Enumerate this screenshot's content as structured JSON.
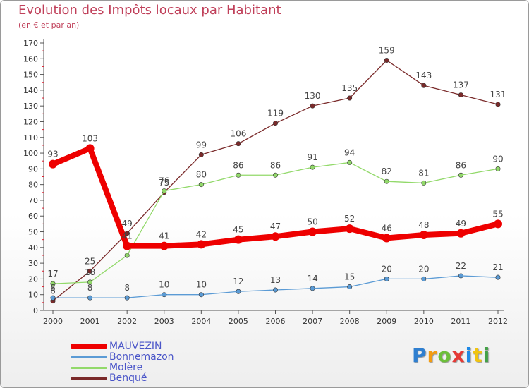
{
  "header": {
    "title": "Evolution des Impôts locaux par Habitant",
    "subtitle": "(en € et par an)"
  },
  "brand": {
    "text": "Proxiti",
    "letter_colors": [
      "#2f7fd0",
      "#f39c12",
      "#6cbf3a",
      "#e53935",
      "#1e88e5",
      "#f1c40f",
      "#43a047"
    ]
  },
  "chart_data": {
    "type": "line",
    "title": "Evolution des Impôts locaux par Habitant",
    "subtitle": "(en € et par an)",
    "xlabel": "",
    "ylabel": "",
    "x": [
      "2000",
      "2001",
      "2002",
      "2003",
      "2004",
      "2005",
      "2006",
      "2007",
      "2008",
      "2009",
      "2010",
      "2011",
      "2012"
    ],
    "ylim": [
      0,
      170
    ],
    "yticks": [
      0,
      10,
      20,
      30,
      40,
      50,
      60,
      70,
      80,
      90,
      100,
      110,
      120,
      130,
      140,
      150,
      160,
      170
    ],
    "grid": false,
    "legend_position": "bottom-left",
    "series": [
      {
        "name": "Benqué",
        "color": "#7a2a2a",
        "values": [
          6,
          25,
          49,
          75,
          99,
          106,
          119,
          130,
          135,
          159,
          143,
          137,
          131
        ],
        "labels": [
          "6",
          "25",
          "49",
          "75",
          "99",
          "106",
          "119",
          "130",
          "135",
          "159",
          "143",
          "137",
          "131"
        ]
      },
      {
        "name": "Molère",
        "color": "#92d96a",
        "values": [
          17,
          18,
          35,
          76,
          80,
          86,
          86,
          91,
          94,
          82,
          81,
          86,
          90
        ],
        "labels": [
          "17",
          "18",
          "",
          "76",
          "80",
          "86",
          "86",
          "91",
          "94",
          "82",
          "81",
          "86",
          "90"
        ]
      },
      {
        "name": "Bonnemazon",
        "color": "#5b9bd5",
        "values": [
          8,
          8,
          8,
          10,
          10,
          12,
          13,
          14,
          15,
          20,
          20,
          22,
          21
        ],
        "labels": [
          "8",
          "8",
          "8",
          "10",
          "10",
          "12",
          "13",
          "14",
          "15",
          "20",
          "20",
          "22",
          "21"
        ]
      },
      {
        "name": "MAUVEZIN",
        "color": "#ee0000",
        "values": [
          93,
          103,
          41,
          41,
          42,
          45,
          47,
          50,
          52,
          46,
          48,
          49,
          55
        ],
        "labels": [
          "93",
          "103",
          "41",
          "41",
          "42",
          "45",
          "47",
          "50",
          "52",
          "46",
          "48",
          "49",
          "55"
        ]
      }
    ],
    "legend": [
      {
        "name": "MAUVEZIN",
        "color": "#ee0000"
      },
      {
        "name": "Bonnemazon",
        "color": "#5b9bd5"
      },
      {
        "name": "Molère",
        "color": "#92d96a"
      },
      {
        "name": "Benqué",
        "color": "#7a2a2a"
      }
    ]
  }
}
